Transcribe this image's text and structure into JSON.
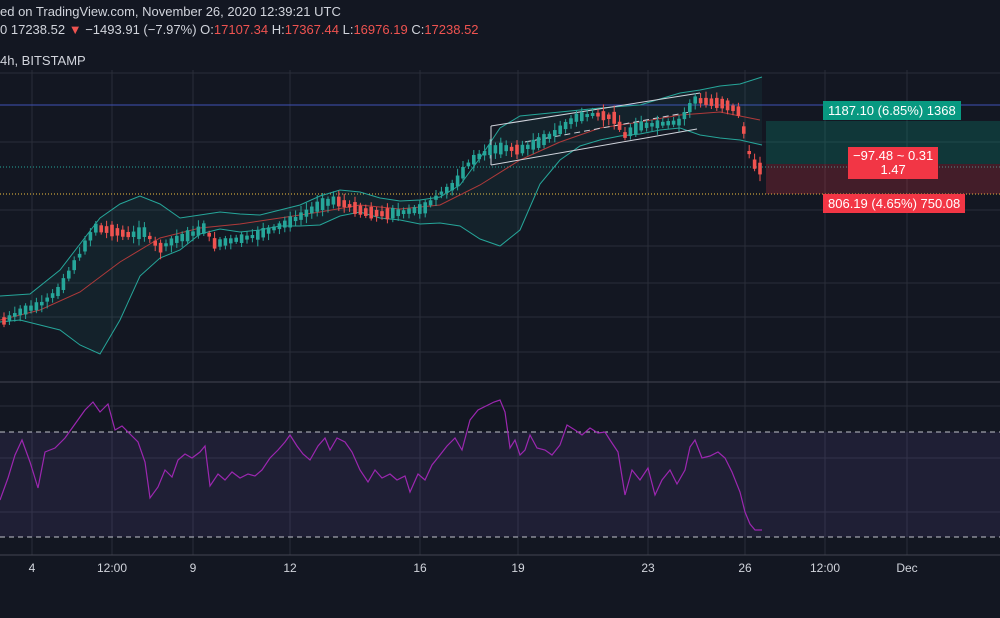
{
  "header": {
    "publisher": "ed on TradingView.com, November 26, 2020 12:39:21 UTC",
    "prefix": "0",
    "last": "17238.52",
    "change": "−1493.91 (−7.97%)",
    "open_label": "O:",
    "open": "17107.34",
    "high_label": "H:",
    "high": "17367.44",
    "low_label": "L:",
    "low": "16976.19",
    "close_label": "C:",
    "close": "17238.52",
    "interval_exchange": "4h, BITSTAMP"
  },
  "position_tool": {
    "target": "1187.10 (6.85%) 1368",
    "mid_line1": "−97.48 ~ 0.31",
    "mid_line2": "1.47",
    "stop": "806.19 (4.65%) 750.08"
  },
  "time_axis": {
    "labels": [
      "4",
      "12:00",
      "9",
      "12",
      "16",
      "19",
      "23",
      "26",
      "12:00",
      "Dec"
    ]
  },
  "colors": {
    "background": "#131722",
    "bull": "#26a69a",
    "bear": "#ef5350",
    "rsi": "#9c27b0",
    "target_zone": "#089981",
    "stop_zone": "#f23645"
  }
}
